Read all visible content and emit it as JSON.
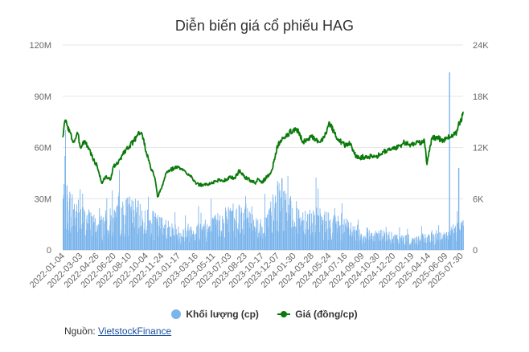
{
  "chart_data": {
    "type": "bar+line",
    "title": "Diễn biến giá cổ phiếu HAG",
    "x_ticks": [
      "2022-01-04",
      "2022-03-03",
      "2022-04-26",
      "2022-06-20",
      "2022-08-10",
      "2022-10-04",
      "2022-11-24",
      "2023-01-17",
      "2023-03-16",
      "2023-05-11",
      "2023-07-03",
      "2023-08-23",
      "2023-10-17",
      "2023-12-07",
      "2024-01-30",
      "2024-03-28",
      "2024-05-24",
      "2024-07-16",
      "2024-09-09",
      "2024-10-30",
      "2024-12-20",
      "2025-02-19",
      "2025-04-14",
      "2025-06-09",
      "2025-07-30"
    ],
    "y_left_ticks": [
      "0",
      "30M",
      "60M",
      "90M",
      "120M"
    ],
    "y_right_ticks": [
      "0",
      "6K",
      "12K",
      "18K",
      "24K"
    ],
    "ylim_left": [
      0,
      120000000
    ],
    "ylim_right": [
      0,
      24000
    ],
    "grid": true,
    "series": [
      {
        "name": "Khối lượng (cp)",
        "type": "bar",
        "axis": "left",
        "color": "#7cb5ec",
        "level_by_tick": [
          30000000,
          20000000,
          14000000,
          18000000,
          23000000,
          17000000,
          14000000,
          10000000,
          12000000,
          14000000,
          20000000,
          22000000,
          12000000,
          28000000,
          20000000,
          18000000,
          16000000,
          13000000,
          9000000,
          9000000,
          7000000,
          6000000,
          7000000,
          8000000,
          14000000
        ],
        "spikes": [
          {
            "date": "2025-06-20",
            "value": 104000000
          },
          {
            "date": "2022-01-10",
            "value": 55000000
          },
          {
            "date": "2023-12-20",
            "value": 42000000
          },
          {
            "date": "2025-07-20",
            "value": 48000000
          }
        ]
      },
      {
        "name": "Giá (đồng/cp)",
        "type": "line",
        "axis": "right",
        "color": "#0a7a0a",
        "points": [
          [
            "2022-01-04",
            13200
          ],
          [
            "2022-01-12",
            15200
          ],
          [
            "2022-01-20",
            14500
          ],
          [
            "2022-02-08",
            12600
          ],
          [
            "2022-02-22",
            13600
          ],
          [
            "2022-03-03",
            12000
          ],
          [
            "2022-03-15",
            12800
          ],
          [
            "2022-04-01",
            11800
          ],
          [
            "2022-04-15",
            10500
          ],
          [
            "2022-04-26",
            9900
          ],
          [
            "2022-05-12",
            7800
          ],
          [
            "2022-05-25",
            8600
          ],
          [
            "2022-06-08",
            8200
          ],
          [
            "2022-06-20",
            9800
          ],
          [
            "2022-07-05",
            10200
          ],
          [
            "2022-07-20",
            11300
          ],
          [
            "2022-08-10",
            12200
          ],
          [
            "2022-08-25",
            12700
          ],
          [
            "2022-09-08",
            13800
          ],
          [
            "2022-09-20",
            13600
          ],
          [
            "2022-10-04",
            11500
          ],
          [
            "2022-10-18",
            9700
          ],
          [
            "2022-11-01",
            8500
          ],
          [
            "2022-11-10",
            6200
          ],
          [
            "2022-11-24",
            7300
          ],
          [
            "2022-12-08",
            9000
          ],
          [
            "2022-12-22",
            9400
          ],
          [
            "2023-01-05",
            9600
          ],
          [
            "2023-01-17",
            9700
          ],
          [
            "2023-02-10",
            9100
          ],
          [
            "2023-02-28",
            8700
          ],
          [
            "2023-03-16",
            7700
          ],
          [
            "2023-04-05",
            7600
          ],
          [
            "2023-04-25",
            7700
          ],
          [
            "2023-05-11",
            7900
          ],
          [
            "2023-05-30",
            8200
          ],
          [
            "2023-06-15",
            8100
          ],
          [
            "2023-07-03",
            8500
          ],
          [
            "2023-07-20",
            8400
          ],
          [
            "2023-08-05",
            9300
          ],
          [
            "2023-08-23",
            8500
          ],
          [
            "2023-09-08",
            8200
          ],
          [
            "2023-09-25",
            7800
          ],
          [
            "2023-10-05",
            8300
          ],
          [
            "2023-10-17",
            7900
          ],
          [
            "2023-10-30",
            8400
          ],
          [
            "2023-11-15",
            9000
          ],
          [
            "2023-11-28",
            10600
          ],
          [
            "2023-12-07",
            12200
          ],
          [
            "2023-12-20",
            12800
          ],
          [
            "2024-01-10",
            13500
          ],
          [
            "2024-01-30",
            14200
          ],
          [
            "2024-02-15",
            13800
          ],
          [
            "2024-03-01",
            12600
          ],
          [
            "2024-03-15",
            13000
          ],
          [
            "2024-03-28",
            13200
          ],
          [
            "2024-04-10",
            12800
          ],
          [
            "2024-04-25",
            12600
          ],
          [
            "2024-05-10",
            13400
          ],
          [
            "2024-05-24",
            15000
          ],
          [
            "2024-06-10",
            13700
          ],
          [
            "2024-06-25",
            12900
          ],
          [
            "2024-07-05",
            12600
          ],
          [
            "2024-07-16",
            12200
          ],
          [
            "2024-08-01",
            12500
          ],
          [
            "2024-08-15",
            11200
          ],
          [
            "2024-09-01",
            10700
          ],
          [
            "2024-09-09",
            10900
          ],
          [
            "2024-09-25",
            10800
          ],
          [
            "2024-10-10",
            11100
          ],
          [
            "2024-10-30",
            11000
          ],
          [
            "2024-11-15",
            11500
          ],
          [
            "2024-12-01",
            11700
          ],
          [
            "2024-12-20",
            11800
          ],
          [
            "2025-01-10",
            12200
          ],
          [
            "2025-01-25",
            12600
          ],
          [
            "2025-02-10",
            12300
          ],
          [
            "2025-02-19",
            12300
          ],
          [
            "2025-03-05",
            12700
          ],
          [
            "2025-03-20",
            12600
          ],
          [
            "2025-04-01",
            12700
          ],
          [
            "2025-04-09",
            10000
          ],
          [
            "2025-04-14",
            11000
          ],
          [
            "2025-04-25",
            13100
          ],
          [
            "2025-05-10",
            13200
          ],
          [
            "2025-05-25",
            12900
          ],
          [
            "2025-06-09",
            12900
          ],
          [
            "2025-06-20",
            13200
          ],
          [
            "2025-07-05",
            13500
          ],
          [
            "2025-07-15",
            13800
          ],
          [
            "2025-07-22",
            15000
          ],
          [
            "2025-07-30",
            15000
          ],
          [
            "2025-08-05",
            16200
          ]
        ]
      }
    ]
  },
  "source": {
    "label": "Nguồn:",
    "link_text": "VietstockFinance"
  }
}
